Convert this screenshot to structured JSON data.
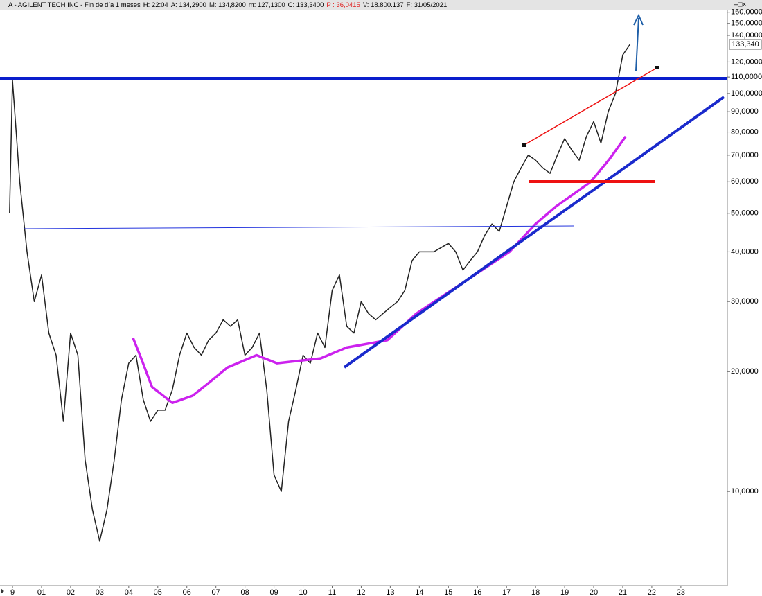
{
  "chart_data": {
    "type": "line",
    "header": [
      "A - AGILENT TECH INC - Fin de día 1 meses",
      "H: 22:04",
      "A: 134,2900",
      "M: 134,8200",
      "m: 127,1300",
      "C: 133,3400",
      "P : 36,0415",
      "V: 18.800.137",
      "F: 31/05/2021"
    ],
    "header_highlight": 6,
    "last_label": "133,340",
    "log_scale": true,
    "xlim": [
      1999.57,
      2024.6
    ],
    "xticks": [
      {
        "value": 2000,
        "label": "9"
      },
      {
        "value": 2001,
        "label": "01"
      },
      {
        "value": 2002,
        "label": "02"
      },
      {
        "value": 2003,
        "label": "03"
      },
      {
        "value": 2004,
        "label": "04"
      },
      {
        "value": 2005,
        "label": "05"
      },
      {
        "value": 2006,
        "label": "06"
      },
      {
        "value": 2007,
        "label": "07"
      },
      {
        "value": 2008,
        "label": "08"
      },
      {
        "value": 2009,
        "label": "09"
      },
      {
        "value": 2010,
        "label": "10"
      },
      {
        "value": 2011,
        "label": "11"
      },
      {
        "value": 2012,
        "label": "12"
      },
      {
        "value": 2013,
        "label": "13"
      },
      {
        "value": 2014,
        "label": "14"
      },
      {
        "value": 2015,
        "label": "15"
      },
      {
        "value": 2016,
        "label": "16"
      },
      {
        "value": 2017,
        "label": "17"
      },
      {
        "value": 2018,
        "label": "18"
      },
      {
        "value": 2019,
        "label": "19"
      },
      {
        "value": 2020,
        "label": "20"
      },
      {
        "value": 2021,
        "label": "21"
      },
      {
        "value": 2022,
        "label": "22"
      },
      {
        "value": 2023,
        "label": "23"
      }
    ],
    "ylim": [
      5.8,
      165
    ],
    "yticks": [
      {
        "value": 10,
        "label": "10,0000"
      },
      {
        "value": 20,
        "label": "20,0000"
      },
      {
        "value": 30,
        "label": "30,0000"
      },
      {
        "value": 40,
        "label": "40,0000"
      },
      {
        "value": 50,
        "label": "50,0000"
      },
      {
        "value": 60,
        "label": "60,0000"
      },
      {
        "value": 70,
        "label": "70,0000"
      },
      {
        "value": 80,
        "label": "80,0000"
      },
      {
        "value": 90,
        "label": "90,0000"
      },
      {
        "value": 100,
        "label": "100,0000"
      },
      {
        "value": 110,
        "label": "110,0000"
      },
      {
        "value": 120,
        "label": "120,0000"
      },
      {
        "value": 140,
        "label": "140,0000"
      },
      {
        "value": 150,
        "label": "150,0000"
      },
      {
        "value": 160,
        "label": "160,0000"
      }
    ],
    "series": [
      {
        "color": "#222222",
        "x": [
          1999.9,
          2000.0,
          2000.25,
          2000.5,
          2000.75,
          2001.0,
          2001.25,
          2001.5,
          2001.75,
          2002.0,
          2002.25,
          2002.5,
          2002.75,
          2003.0,
          2003.25,
          2003.5,
          2003.75,
          2004.0,
          2004.25,
          2004.5,
          2004.75,
          2005.0,
          2005.25,
          2005.5,
          2005.75,
          2006.0,
          2006.25,
          2006.5,
          2006.75,
          2007.0,
          2007.25,
          2007.5,
          2007.75,
          2008.0,
          2008.25,
          2008.5,
          2008.75,
          2009.0,
          2009.25,
          2009.5,
          2009.75,
          2010.0,
          2010.25,
          2010.5,
          2010.75,
          2011.0,
          2011.25,
          2011.5,
          2011.75,
          2012.0,
          2012.25,
          2012.5,
          2012.75,
          2013.0,
          2013.25,
          2013.5,
          2013.75,
          2014.0,
          2014.25,
          2014.5,
          2014.75,
          2015.0,
          2015.25,
          2015.5,
          2015.75,
          2016.0,
          2016.25,
          2016.5,
          2016.75,
          2017.0,
          2017.25,
          2017.5,
          2017.75,
          2018.0,
          2018.25,
          2018.5,
          2018.75,
          2019.0,
          2019.25,
          2019.5,
          2019.75,
          2020.0,
          2020.25,
          2020.5,
          2020.75,
          2021.0,
          2021.25
        ],
        "values": [
          50,
          108,
          60,
          40,
          30,
          35,
          25,
          22,
          15,
          25,
          22,
          12,
          9,
          7.5,
          9,
          12,
          17,
          21,
          22,
          17,
          15,
          16,
          16,
          18,
          22,
          25,
          23,
          22,
          24,
          25,
          27,
          26,
          27,
          22,
          23,
          25,
          18,
          11,
          10,
          15,
          18,
          22,
          21,
          25,
          23,
          32,
          35,
          26,
          25,
          30,
          28,
          27,
          28,
          29,
          30,
          32,
          38,
          40,
          40,
          40,
          41,
          42,
          40,
          36,
          38,
          40,
          44,
          47,
          45,
          52,
          60,
          65,
          70,
          68,
          65,
          63,
          70,
          77,
          72,
          68,
          78,
          85,
          75,
          90,
          100,
          125,
          133
        ]
      },
      {
        "color": "#cc22ee",
        "x": [
          2004.15,
          2004.45,
          2004.8,
          2005.5,
          2006.2,
          2006.7,
          2007.4,
          2008.4,
          2009.1,
          2010.6,
          2011.5,
          2012.9,
          2013.9,
          2015.8,
          2017.1,
          2018.0,
          2018.7,
          2019.9,
          2020.55,
          2021.1
        ],
        "values": [
          24.3,
          21.4,
          18.3,
          16.7,
          17.4,
          18.6,
          20.5,
          22,
          21,
          21.6,
          23,
          24,
          28,
          34.6,
          40,
          47,
          52,
          60,
          68.5,
          78
        ]
      }
    ]
  }
}
